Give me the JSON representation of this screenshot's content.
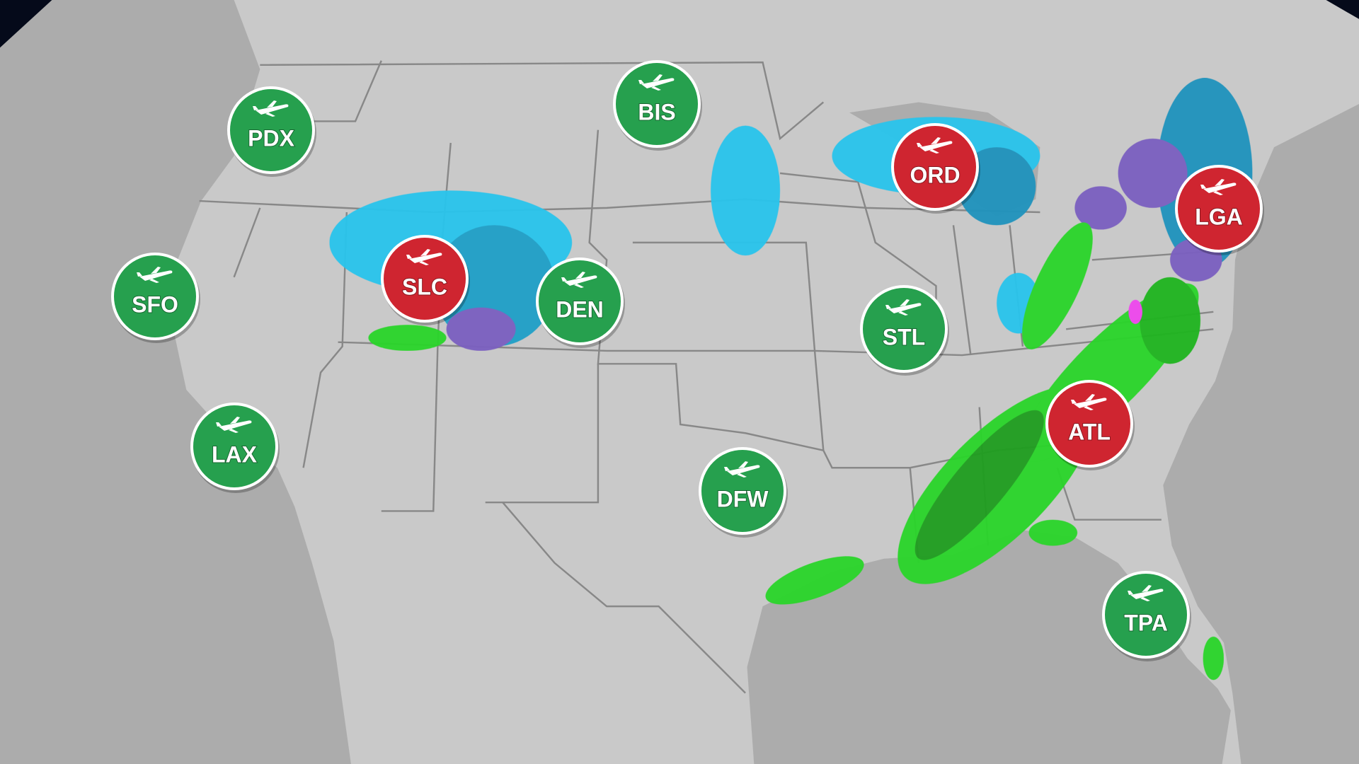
{
  "airports": [
    {
      "code": "PDX",
      "color": "#26a04e"
    },
    {
      "code": "BIS",
      "color": "#26a04e"
    },
    {
      "code": "SFO",
      "color": "#26a04e"
    },
    {
      "code": "SLC",
      "color": "#cf2530"
    },
    {
      "code": "DEN",
      "color": "#26a04e"
    },
    {
      "code": "LAX",
      "color": "#26a04e"
    },
    {
      "code": "DFW",
      "color": "#26a04e"
    },
    {
      "code": "STL",
      "color": "#26a04e"
    },
    {
      "code": "ORD",
      "color": "#cf2530"
    },
    {
      "code": "LGA",
      "color": "#cf2530"
    },
    {
      "code": "ATL",
      "color": "#cf2530"
    },
    {
      "code": "TPA",
      "color": "#26a04e"
    }
  ]
}
